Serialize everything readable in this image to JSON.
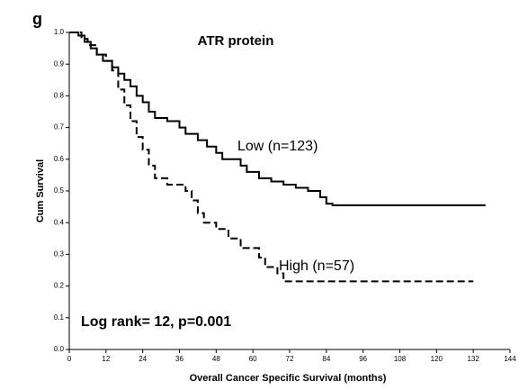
{
  "panel_label": "g",
  "chart_data": {
    "type": "step",
    "title": "ATR protein",
    "xlabel": "Overall Cancer Specific Survival (months)",
    "ylabel": "Cum Survival",
    "xlim": [
      0,
      144
    ],
    "ylim": [
      0,
      1
    ],
    "xticks": [
      0,
      12,
      24,
      36,
      48,
      60,
      72,
      84,
      96,
      108,
      120,
      132,
      144
    ],
    "yticks": [
      {
        "value": 0,
        "label": "0.0"
      },
      0.1,
      0.2,
      0.3,
      0.4,
      0.5,
      0.6,
      0.7,
      0.8,
      0.9,
      {
        "value": 1,
        "label": "1.0"
      }
    ],
    "annotations": [
      "Low (n=123)",
      "High (n=57)",
      "Log rank= 12, p=0.001"
    ],
    "series": [
      {
        "name": "Low",
        "color": "#000000",
        "dashed": false,
        "x": [
          0,
          3,
          5,
          7,
          9,
          11,
          14,
          16,
          18,
          20,
          22,
          24,
          26,
          28,
          32,
          36,
          38,
          42,
          45,
          48,
          50,
          56,
          58,
          62,
          66,
          70,
          74,
          78,
          82,
          84,
          86,
          136
        ],
        "values": [
          1.0,
          0.99,
          0.97,
          0.95,
          0.93,
          0.91,
          0.89,
          0.87,
          0.85,
          0.83,
          0.8,
          0.78,
          0.75,
          0.73,
          0.72,
          0.7,
          0.68,
          0.66,
          0.64,
          0.62,
          0.6,
          0.58,
          0.56,
          0.54,
          0.53,
          0.52,
          0.51,
          0.5,
          0.48,
          0.46,
          0.455,
          0.455
        ]
      },
      {
        "name": "High",
        "color": "#000000",
        "dashed": true,
        "x": [
          0,
          4,
          6,
          9,
          12,
          14,
          16,
          18,
          20,
          22,
          24,
          26,
          28,
          32,
          38,
          40,
          42,
          44,
          48,
          52,
          56,
          62,
          64,
          68,
          70,
          132
        ],
        "values": [
          1.0,
          0.98,
          0.96,
          0.93,
          0.91,
          0.88,
          0.82,
          0.77,
          0.72,
          0.67,
          0.63,
          0.58,
          0.54,
          0.52,
          0.5,
          0.47,
          0.43,
          0.4,
          0.38,
          0.35,
          0.32,
          0.29,
          0.26,
          0.24,
          0.215,
          0.215
        ]
      }
    ]
  }
}
